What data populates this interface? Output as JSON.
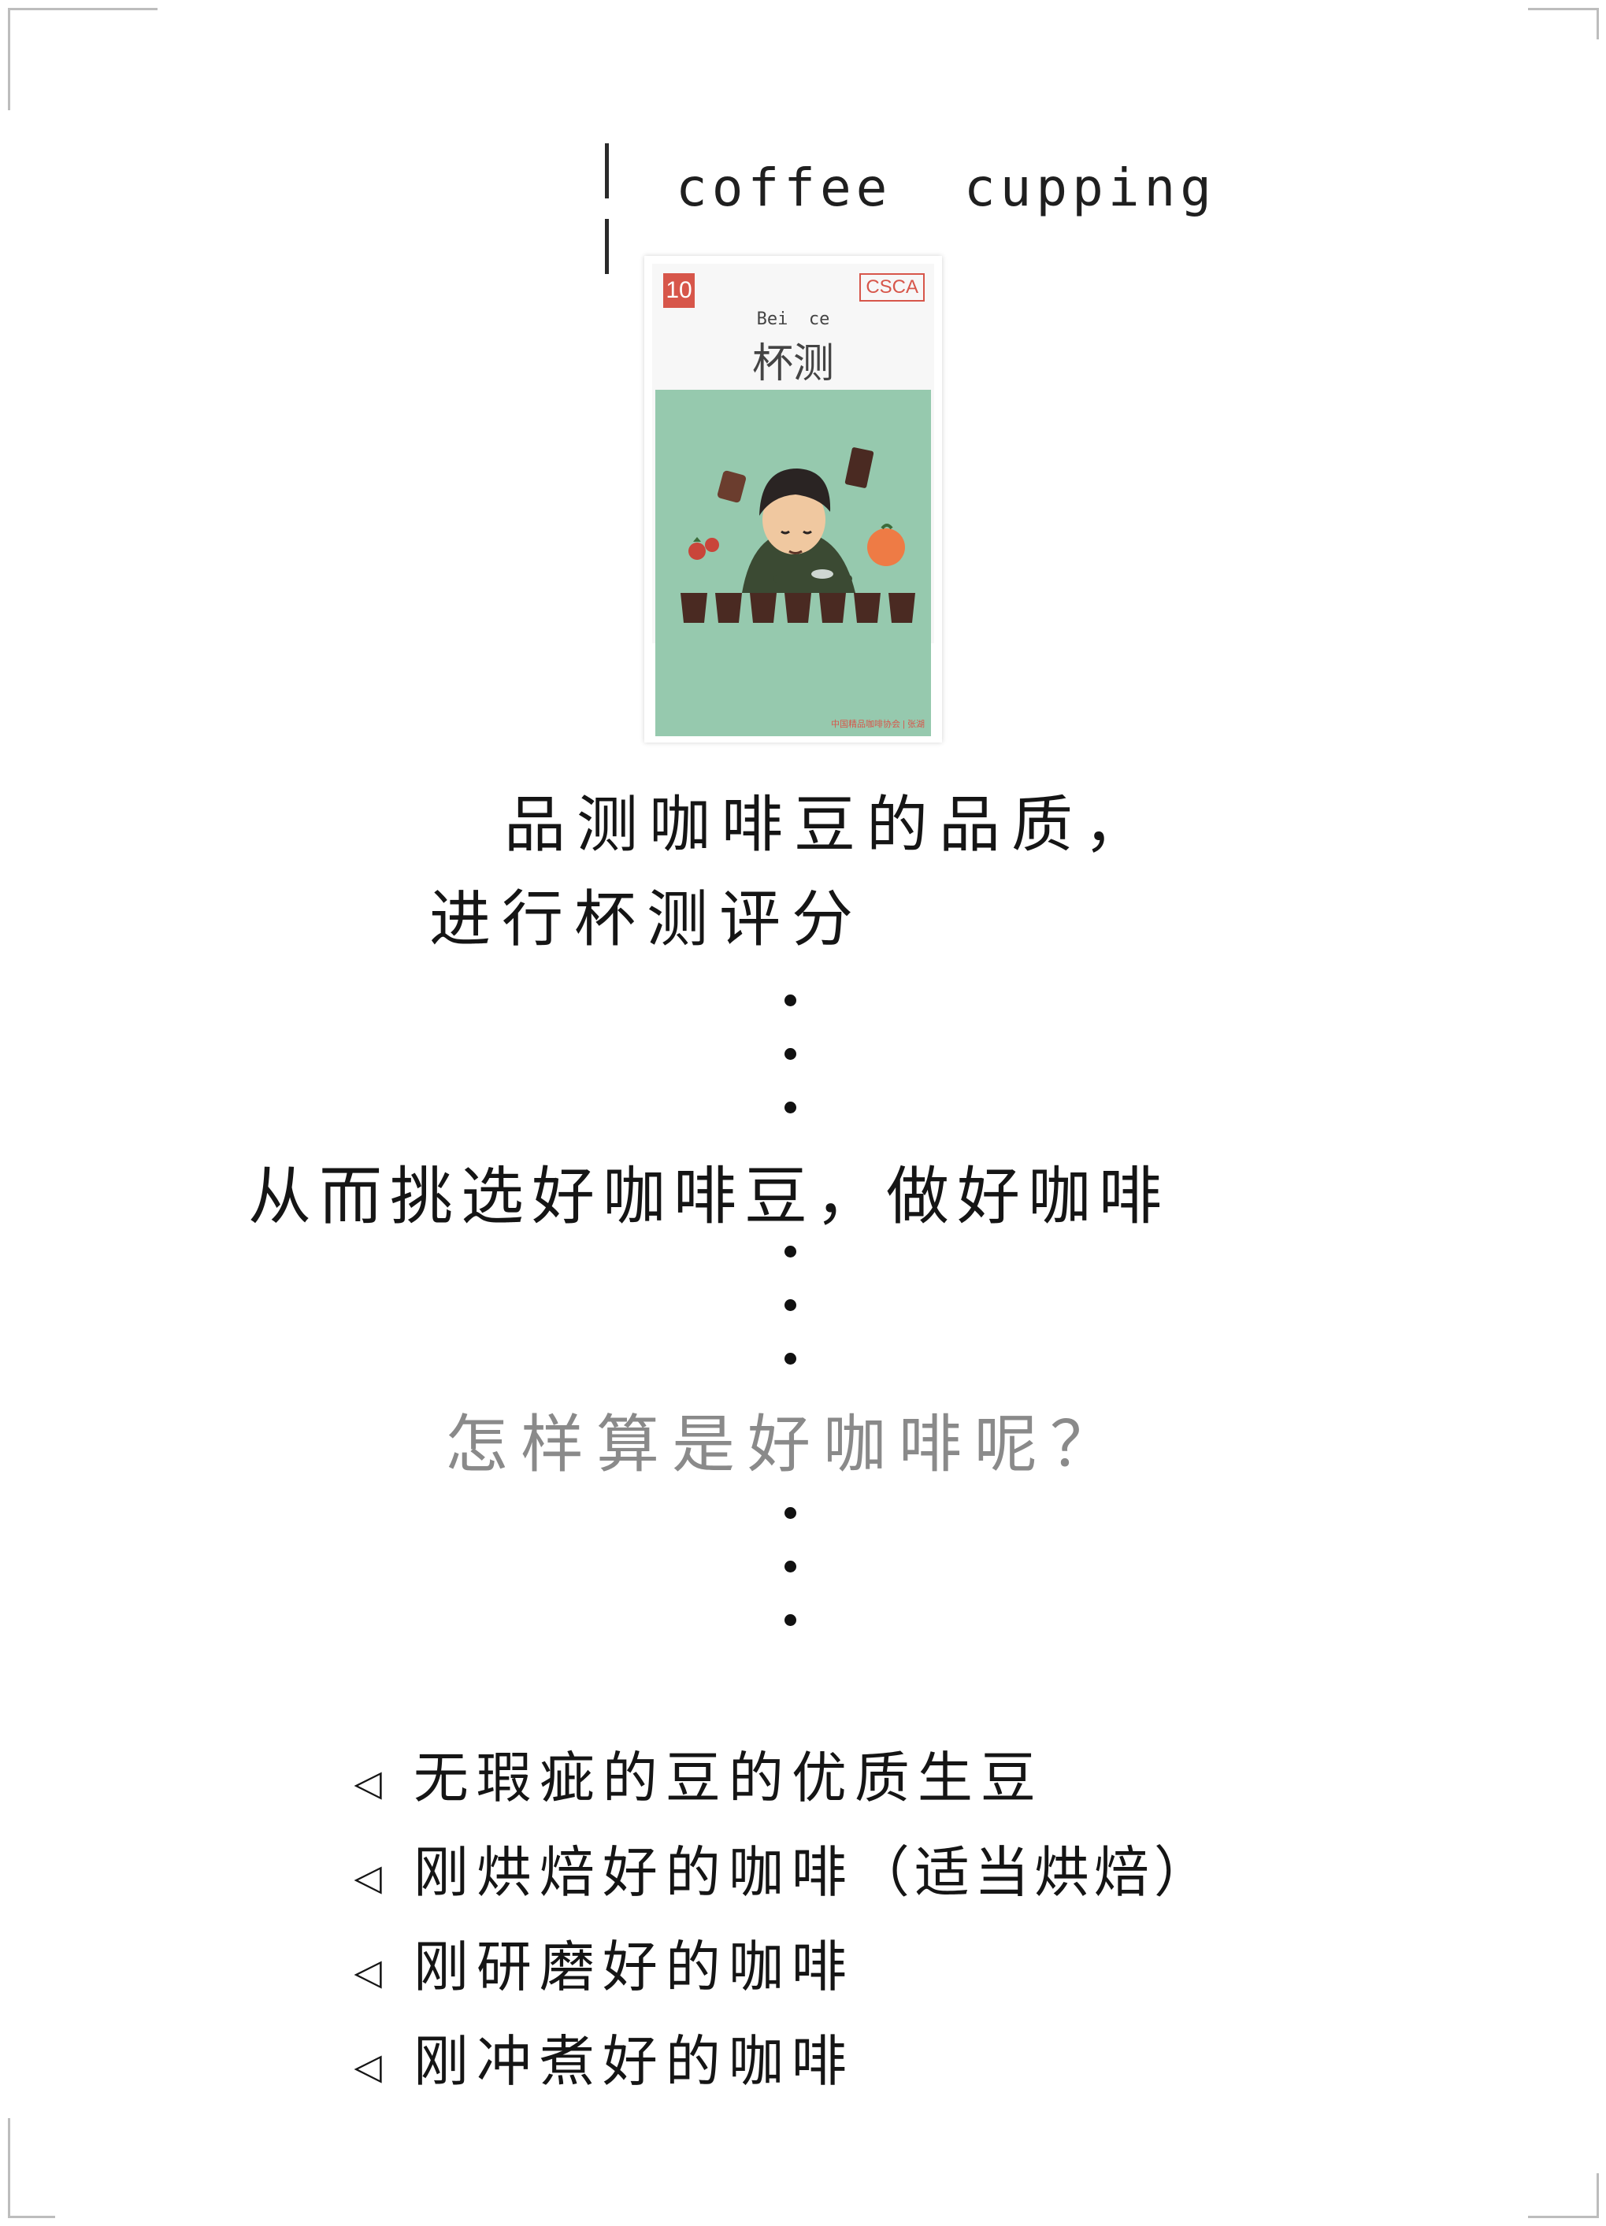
{
  "heading": "coffee  cupping",
  "card": {
    "number": "10",
    "badge": "CSCA",
    "pinyin": "Bei  ce",
    "title": "杯测",
    "credit": "中国精品咖啡协会 | 张湖"
  },
  "intro": {
    "line1": "品测咖啡豆的品质，",
    "line2": "进行杯测评分"
  },
  "statement": "从而挑选好咖啡豆，做好咖啡",
  "question": "怎样算是好咖啡呢？",
  "bullet_symbol": "◁",
  "bullets": [
    {
      "text": "无瑕疵的豆的优质生豆",
      "note": ""
    },
    {
      "text": "刚烘焙好的咖啡",
      "note": "（适当烘焙）"
    },
    {
      "text": "刚研磨好的咖啡",
      "note": ""
    },
    {
      "text": "刚冲煮好的咖啡",
      "note": ""
    }
  ],
  "colors": {
    "card_accent": "#d7564a",
    "illustration_bg": "#96c9ae",
    "question_text": "#8a8a8a"
  }
}
